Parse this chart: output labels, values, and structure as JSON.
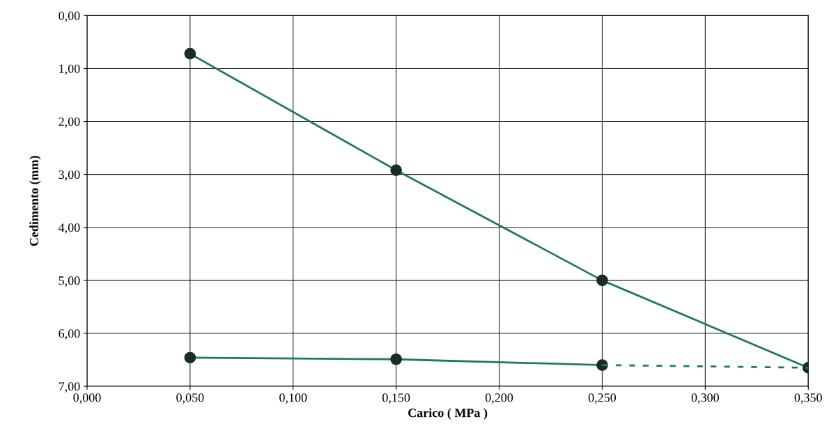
{
  "chart_data": {
    "type": "line",
    "xlabel": "Carico ( MPa )",
    "ylabel": "Cedimento (mm)",
    "series": [
      {
        "color": "#1f7a5c",
        "x": [
          0.05,
          0.15,
          0.25,
          0.35
        ],
        "values": [
          0.72,
          2.92,
          5.0,
          6.65
        ],
        "marker": "circle",
        "line_style": "solid"
      },
      {
        "color": "#1f7a5c",
        "x": [
          0.05,
          0.15,
          0.25
        ],
        "values": [
          6.46,
          6.49,
          6.6
        ],
        "marker": "circle",
        "line_style": "solid"
      },
      {
        "color": "#1f7a5c",
        "x": [
          0.25,
          0.35
        ],
        "values": [
          6.6,
          6.65
        ],
        "marker": "none",
        "line_style": "dashed"
      }
    ],
    "xlim": [
      0,
      0.35
    ],
    "ylim": [
      7,
      0
    ],
    "xticks": [
      {
        "value": 0,
        "label": "0,000"
      },
      {
        "value": 0.05,
        "label": "0,050"
      },
      {
        "value": 0.1,
        "label": "0,100"
      },
      {
        "value": 0.15,
        "label": "0,150"
      },
      {
        "value": 0.2,
        "label": "0,200"
      },
      {
        "value": 0.25,
        "label": "0,250"
      },
      {
        "value": 0.3,
        "label": "0,300"
      },
      {
        "value": 0.35,
        "label": "0,350"
      }
    ],
    "yticks": [
      {
        "value": 0,
        "label": "0,00"
      },
      {
        "value": 1,
        "label": "1,00"
      },
      {
        "value": 2,
        "label": "2,00"
      },
      {
        "value": 3,
        "label": "3,00"
      },
      {
        "value": 4,
        "label": "4,00"
      },
      {
        "value": 5,
        "label": "5,00"
      },
      {
        "value": 6,
        "label": "6,00"
      },
      {
        "value": 7,
        "label": "7,00"
      }
    ],
    "grid": true,
    "legend": false
  }
}
